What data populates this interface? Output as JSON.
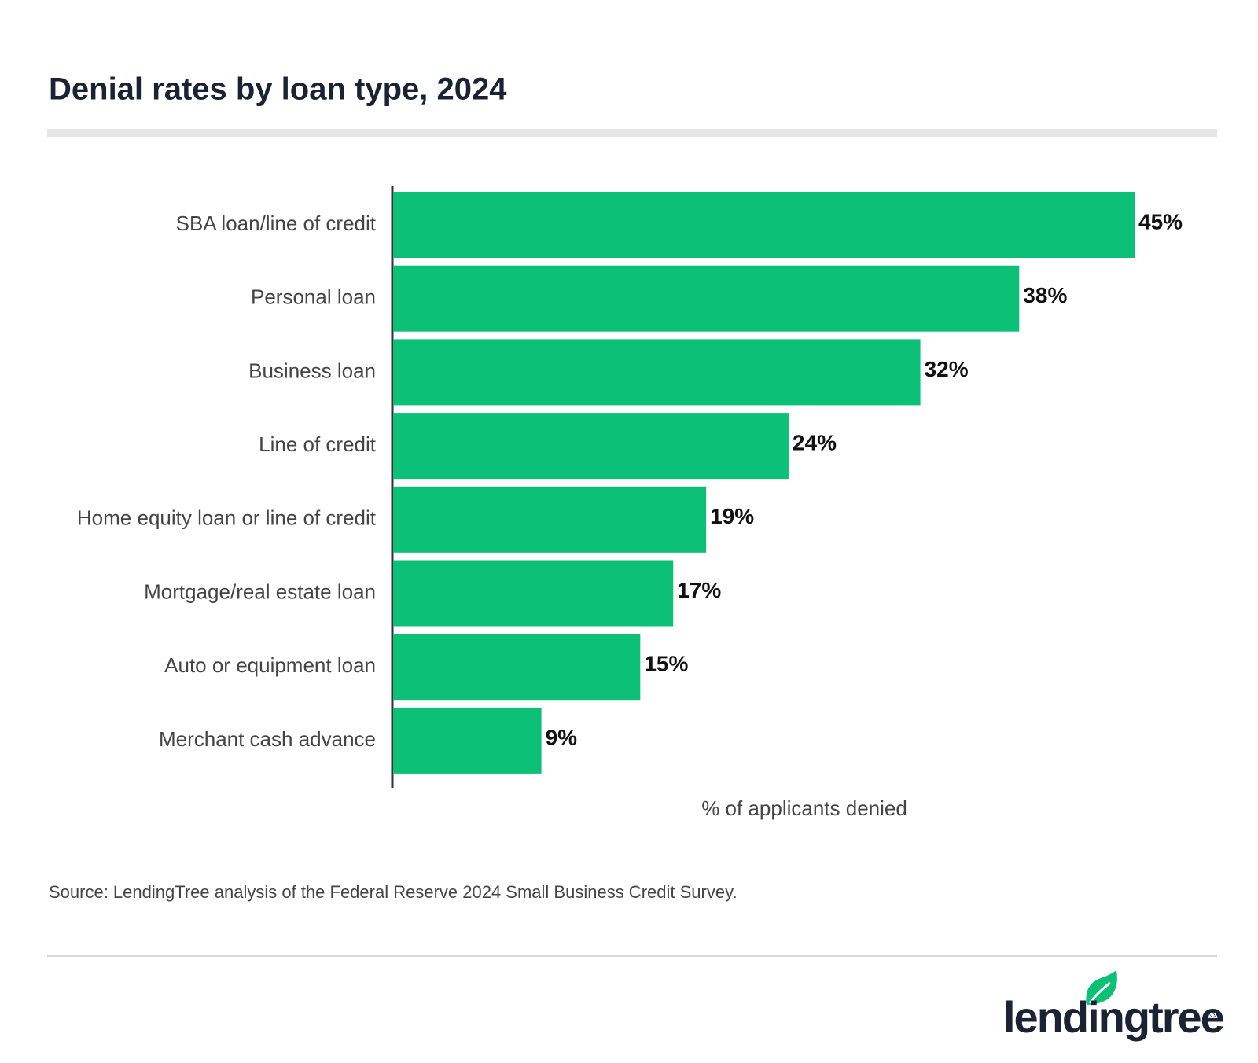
{
  "chart_data": {
    "type": "bar",
    "orientation": "horizontal",
    "title": "Denial rates by loan type, 2024",
    "categories": [
      "SBA loan/line of credit",
      "Personal loan",
      "Business loan",
      "Line of credit",
      "Home equity loan or line of credit",
      "Mortgage/real estate loan",
      "Auto or equipment loan",
      "Merchant cash advance"
    ],
    "values": [
      45,
      38,
      32,
      24,
      19,
      17,
      15,
      9
    ],
    "value_labels": [
      "45%",
      "38%",
      "32%",
      "24%",
      "19%",
      "17%",
      "15%",
      "9%"
    ],
    "color": "#0cc177",
    "xlabel": "% of applicants denied",
    "source": "Source: LendingTree analysis of the Federal Reserve 2024 Small Business Credit Survey.",
    "logo": "lendingtree",
    "logo_mark": "®"
  }
}
